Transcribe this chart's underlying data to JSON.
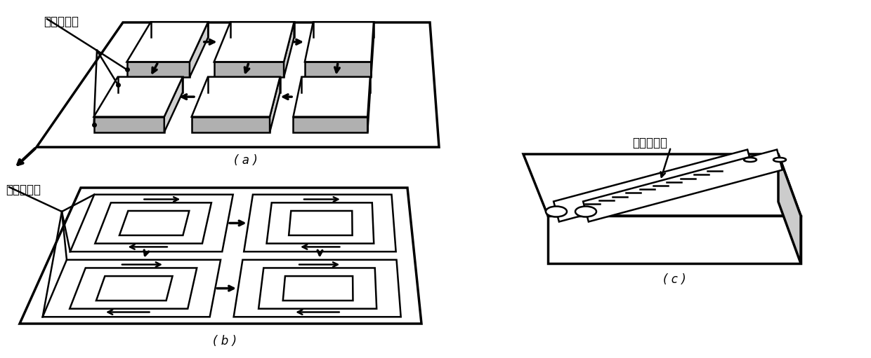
{
  "label_a": "( a )",
  "label_b": "( b )",
  "label_c": "( c )",
  "text_a": "多道搭接处",
  "text_b": "多道搭接处",
  "text_c": "多道搭接处",
  "bg_color": "#ffffff",
  "line_color": "#000000",
  "lw": 1.8,
  "lw_thick": 2.5
}
